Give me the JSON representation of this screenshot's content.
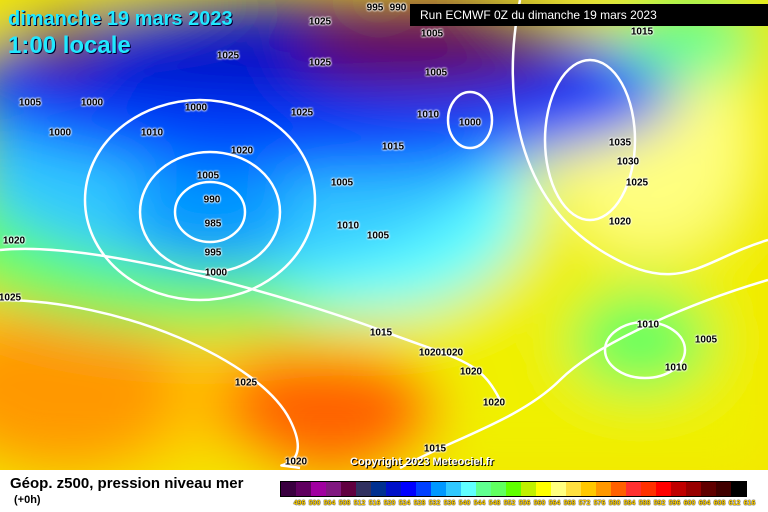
{
  "header": {
    "date": "dimanche 19 mars 2023",
    "time": "1:00 locale",
    "run": "Run ECMWF 0Z du dimanche 19 mars 2023"
  },
  "footer": {
    "title": "Géop. z500, pression niveau mer",
    "lead": "(+0h)",
    "copyright": "Copyright 2023 Meteociel.fr"
  },
  "legend": {
    "values": [
      "496",
      "500",
      "504",
      "508",
      "512",
      "516",
      "520",
      "524",
      "528",
      "532",
      "536",
      "540",
      "544",
      "548",
      "552",
      "556",
      "560",
      "564",
      "568",
      "572",
      "576",
      "580",
      "584",
      "588",
      "592",
      "596",
      "600",
      "604",
      "608",
      "612",
      "616"
    ],
    "colors": [
      "#3a0040",
      "#600060",
      "#a000a0",
      "#801880",
      "#600040",
      "#303060",
      "#003090",
      "#0010c8",
      "#0000ff",
      "#0040ff",
      "#0098ff",
      "#30c8ff",
      "#60ffff",
      "#60ff90",
      "#60ff60",
      "#60ff00",
      "#c0f000",
      "#ffff00",
      "#ffff80",
      "#ffe040",
      "#ffc800",
      "#ff9800",
      "#ff6000",
      "#ff3030",
      "#ff3000",
      "#ff0000",
      "#c00000",
      "#980000",
      "#600000",
      "#400000",
      "#000000"
    ]
  },
  "isobars": [
    "1025",
    "995",
    "990",
    "1005",
    "1015",
    "1025",
    "1025",
    "1005",
    "1005",
    "1000",
    "1000",
    "1025",
    "1010",
    "1000",
    "1010",
    "1000",
    "1035",
    "1020",
    "1015",
    "1030",
    "1005",
    "1005",
    "1025",
    "990",
    "985",
    "1010",
    "1005",
    "1020",
    "1020",
    "995",
    "1000",
    "1025",
    "1010",
    "1015",
    "1005",
    "1020",
    "1020",
    "1010",
    "1020",
    "1025",
    "1020",
    "1015",
    "1020"
  ]
}
